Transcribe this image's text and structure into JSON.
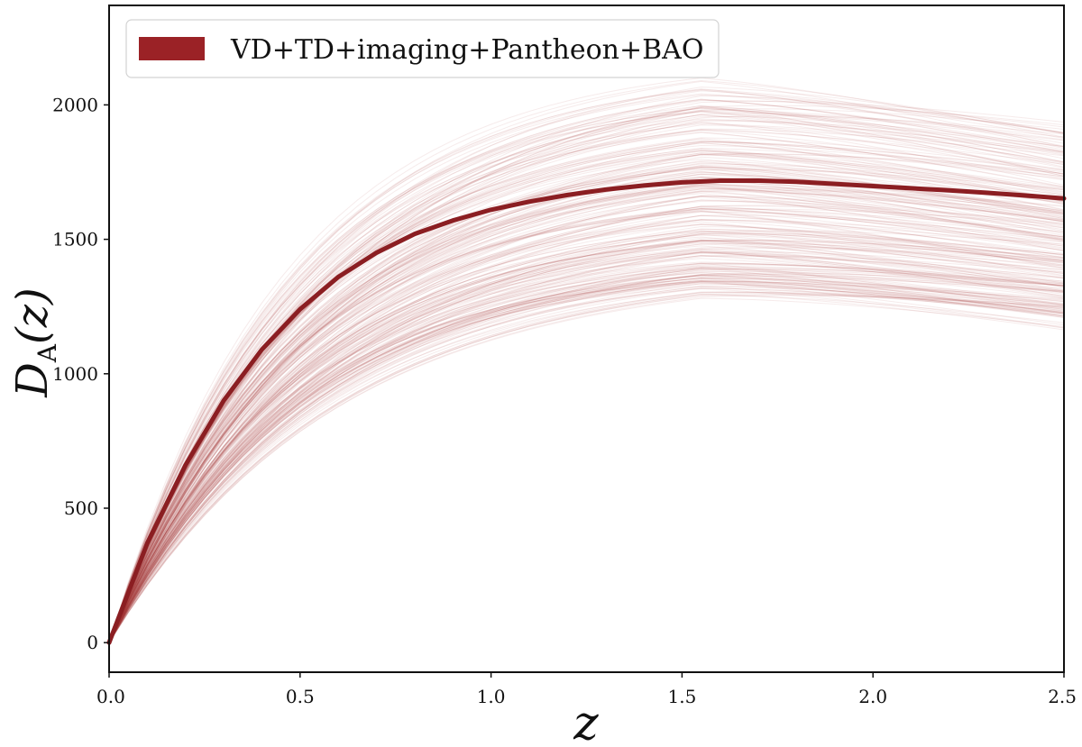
{
  "chart_data": {
    "type": "line",
    "title": "",
    "xlabel": "z",
    "ylabel": {
      "main": "D",
      "subscript": "A",
      "argument": "(z)"
    },
    "xlim": [
      0.0,
      2.5
    ],
    "ylim": [
      -110,
      2370
    ],
    "x_ticks": [
      0.0,
      0.5,
      1.0,
      1.5,
      2.0,
      2.5
    ],
    "x_tick_labels": [
      "0.0",
      "0.5",
      "1.0",
      "1.5",
      "2.0",
      "2.5"
    ],
    "y_ticks": [
      0,
      500,
      1000,
      1500,
      2000
    ],
    "y_tick_labels": [
      "0",
      "500",
      "1000",
      "1500",
      "2000"
    ],
    "grid": false,
    "legend": {
      "placement": "top-left",
      "entries": [
        {
          "label": "VD+TD+imaging+Pantheon+BAO",
          "color": "#9b2226"
        }
      ]
    },
    "series": [
      {
        "name": "VD+TD+imaging+Pantheon+BAO",
        "kind": "best-fit",
        "color": "#8b1e22",
        "x": [
          0.0,
          0.1,
          0.2,
          0.3,
          0.4,
          0.5,
          0.6,
          0.7,
          0.8,
          0.9,
          1.0,
          1.1,
          1.2,
          1.3,
          1.4,
          1.5,
          1.6,
          1.7,
          1.8,
          1.9,
          2.0,
          2.1,
          2.2,
          2.3,
          2.4,
          2.5
        ],
        "values": [
          0,
          370,
          660,
          900,
          1090,
          1240,
          1360,
          1450,
          1520,
          1570,
          1610,
          1640,
          1665,
          1685,
          1700,
          1712,
          1718,
          1718,
          1714,
          1706,
          1698,
          1690,
          1682,
          1673,
          1663,
          1652
        ]
      }
    ],
    "posterior_samples": {
      "count": 260,
      "color": "#a33a3f",
      "opacity": 0.1,
      "plateau_min": 1380,
      "plateau_max": 2200,
      "x_range": [
        0.0,
        2.5
      ]
    }
  }
}
